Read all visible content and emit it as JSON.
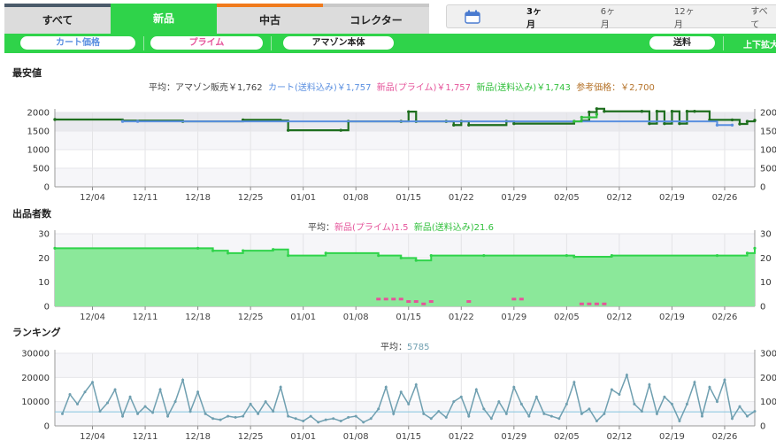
{
  "tabs": [
    {
      "label": "すべて"
    },
    {
      "label": "新品"
    },
    {
      "label": "中古"
    },
    {
      "label": "コレクター"
    }
  ],
  "periods": [
    "3ヶ月",
    "6ヶ月",
    "12ヶ月",
    "すべて"
  ],
  "filters": {
    "cart": "カート価格",
    "prime": "プライム",
    "amazon": "アマゾン本体",
    "shipping": "送料",
    "zoom": "上下拡大"
  },
  "colors": {
    "accent": "#2fd34a",
    "amazon": "#e87a1e",
    "cart": "#5a8fe0",
    "prime": "#e5539a",
    "new_ship": "#2fbf3a",
    "ref": "#b5732a",
    "sellers_fill": "#8be89a",
    "rank": "#6f9fb0"
  },
  "price_chart": {
    "section_title": "最安値",
    "avg_label": "平均：",
    "avg_items": [
      {
        "text": "アマゾン販売￥1,762",
        "color": "#444444"
      },
      {
        "text": "カート(送料込み)￥1,757",
        "color": "#5a8fe0"
      },
      {
        "text": "新品(プライム)￥1,757",
        "color": "#e5539a"
      },
      {
        "text": "新品(送料込み)￥1,743",
        "color": "#2fbf3a"
      },
      {
        "text": "参考価格：￥2,700",
        "color": "#b5732a"
      }
    ]
  },
  "sellers_chart": {
    "section_title": "出品者数",
    "avg_label": "平均：",
    "avg_items": [
      {
        "text": "新品(プライム)1.5",
        "color": "#e5539a"
      },
      {
        "text": "新品(送料込み)21.6",
        "color": "#2fbf3a"
      }
    ]
  },
  "rank_chart": {
    "section_title": "ランキング",
    "avg_label": "平均：",
    "avg_value": "5785"
  },
  "chart_data": [
    {
      "type": "line",
      "title": "最安値",
      "x_ticks": [
        "12/04",
        "12/11",
        "12/18",
        "12/25",
        "01/01",
        "01/08",
        "01/15",
        "01/22",
        "01/29",
        "02/05",
        "02/12",
        "02/19",
        "02/26"
      ],
      "x_range": [
        "11/29",
        "03/02"
      ],
      "ylim": [
        0,
        2000
      ],
      "y_ticks": [
        0,
        500,
        1000,
        1500,
        2000
      ],
      "grid": true,
      "series": [
        {
          "name": "新品(送料込み)",
          "color": "#1e6e1e",
          "x": [
            "11/29",
            "12/08",
            "12/16",
            "12/24",
            "12/29",
            "12/30",
            "01/06",
            "01/07",
            "01/14",
            "01/15",
            "01/16",
            "01/20",
            "01/21",
            "01/22",
            "01/23",
            "01/28",
            "01/29",
            "02/06",
            "02/07",
            "02/08",
            "02/09",
            "02/10",
            "02/15",
            "02/16",
            "02/17",
            "02/18",
            "02/19",
            "02/20",
            "02/21",
            "02/22",
            "02/24",
            "02/27",
            "02/28",
            "03/01",
            "03/02"
          ],
          "y": [
            1810,
            1780,
            1760,
            1800,
            1780,
            1520,
            1520,
            1760,
            1760,
            2020,
            1760,
            1760,
            1660,
            1760,
            1660,
            1760,
            1700,
            1760,
            1780,
            2010,
            2100,
            2030,
            2030,
            1700,
            2030,
            1700,
            2030,
            1700,
            2030,
            2030,
            1800,
            1800,
            1690,
            1760,
            1790
          ]
        },
        {
          "name": "カート(送料込み)",
          "color": "#5a8fe0",
          "x": [
            "12/08",
            "12/10",
            "02/25",
            "02/27"
          ],
          "y": [
            1760,
            1760,
            1660,
            1660
          ]
        },
        {
          "name": "新品(プライム)",
          "color": "#2fbf3a",
          "x": [
            "02/06",
            "02/07",
            "02/08",
            "02/09"
          ],
          "y": [
            1760,
            1870,
            1870,
            1950
          ]
        }
      ]
    },
    {
      "type": "area",
      "title": "出品者数",
      "x_ticks": [
        "12/04",
        "12/11",
        "12/18",
        "12/25",
        "01/01",
        "01/08",
        "01/15",
        "01/22",
        "01/29",
        "02/05",
        "02/12",
        "02/19",
        "02/26"
      ],
      "x_range": [
        "11/29",
        "03/02"
      ],
      "ylim": [
        0,
        30
      ],
      "y_ticks": [
        0,
        10,
        20,
        30
      ],
      "grid": true,
      "series": [
        {
          "name": "新品(送料込み)",
          "color": "#2fd34a",
          "x": [
            "11/29",
            "12/18",
            "12/20",
            "12/22",
            "12/24",
            "12/28",
            "12/30",
            "01/04",
            "01/11",
            "01/14",
            "01/16",
            "01/18",
            "01/25",
            "02/05",
            "02/06",
            "02/11",
            "02/25",
            "03/01",
            "03/02"
          ],
          "y": [
            24,
            24,
            23,
            22,
            23,
            23.5,
            21,
            22,
            21,
            20,
            19,
            21,
            21,
            21,
            20.5,
            21,
            21,
            22,
            24
          ]
        },
        {
          "name": "新品(プライム)",
          "color": "#e5539a",
          "x": [
            "01/11",
            "01/12",
            "01/13",
            "01/14",
            "01/15",
            "01/16",
            "01/17",
            "01/18",
            "01/23",
            "01/29",
            "01/30",
            "02/07",
            "02/08",
            "02/09",
            "02/10"
          ],
          "y": [
            3,
            3,
            3,
            3,
            2,
            2,
            1,
            2,
            2,
            3,
            3,
            1,
            1,
            1,
            1
          ]
        }
      ]
    },
    {
      "type": "line",
      "title": "ランキング",
      "x_ticks": [
        "12/04",
        "12/11",
        "12/18",
        "12/25",
        "01/01",
        "01/08",
        "01/15",
        "01/22",
        "01/29",
        "02/05",
        "02/12",
        "02/19",
        "02/26"
      ],
      "x_range": [
        "11/29",
        "03/02"
      ],
      "ylim": [
        0,
        30000
      ],
      "y_ticks": [
        0,
        10000,
        20000,
        30000
      ],
      "grid": true,
      "avg": 5785,
      "series": [
        {
          "name": "ランキング",
          "color": "#6f9fb0",
          "x": [
            "11/30",
            "12/01",
            "12/02",
            "12/03",
            "12/04",
            "12/05",
            "12/06",
            "12/07",
            "12/08",
            "12/09",
            "12/10",
            "12/11",
            "12/12",
            "12/13",
            "12/14",
            "12/15",
            "12/16",
            "12/17",
            "12/18",
            "12/19",
            "12/20",
            "12/21",
            "12/22",
            "12/23",
            "12/24",
            "12/25",
            "12/26",
            "12/27",
            "12/28",
            "12/29",
            "12/30",
            "12/31",
            "01/01",
            "01/02",
            "01/03",
            "01/04",
            "01/05",
            "01/06",
            "01/07",
            "01/08",
            "01/09",
            "01/10",
            "01/11",
            "01/12",
            "01/13",
            "01/14",
            "01/15",
            "01/16",
            "01/17",
            "01/18",
            "01/19",
            "01/20",
            "01/21",
            "01/22",
            "01/23",
            "01/24",
            "01/25",
            "01/26",
            "01/27",
            "01/28",
            "01/29",
            "01/30",
            "01/31",
            "02/01",
            "02/02",
            "02/03",
            "02/04",
            "02/05",
            "02/06",
            "02/07",
            "02/08",
            "02/09",
            "02/10",
            "02/11",
            "02/12",
            "02/13",
            "02/14",
            "02/15",
            "02/16",
            "02/17",
            "02/18",
            "02/19",
            "02/20",
            "02/21",
            "02/22",
            "02/23",
            "02/24",
            "02/25",
            "02/26",
            "02/27",
            "02/28",
            "03/01",
            "03/02"
          ],
          "y": [
            5000,
            13000,
            9000,
            14000,
            18000,
            6000,
            9500,
            15000,
            4000,
            12000,
            5000,
            8000,
            5500,
            15000,
            4000,
            10000,
            19000,
            6000,
            14000,
            5000,
            3000,
            2500,
            4000,
            3500,
            4000,
            9000,
            5000,
            10000,
            6000,
            16000,
            4000,
            3000,
            2000,
            4000,
            1500,
            2500,
            3000,
            2000,
            3500,
            4000,
            1500,
            3000,
            7000,
            16000,
            5000,
            14000,
            9000,
            17000,
            5000,
            3000,
            6000,
            3500,
            10000,
            12000,
            4000,
            15000,
            7000,
            3000,
            10000,
            5000,
            16000,
            9000,
            4000,
            12000,
            5000,
            4000,
            3000,
            9000,
            18000,
            5000,
            7000,
            2000,
            5000,
            15000,
            13000,
            21000,
            9000,
            6000,
            17000,
            5000,
            12000,
            9000,
            2000,
            9000,
            18000,
            4000,
            16000,
            10000,
            19000,
            3000,
            8000,
            4000,
            6000
          ]
        }
      ]
    }
  ]
}
